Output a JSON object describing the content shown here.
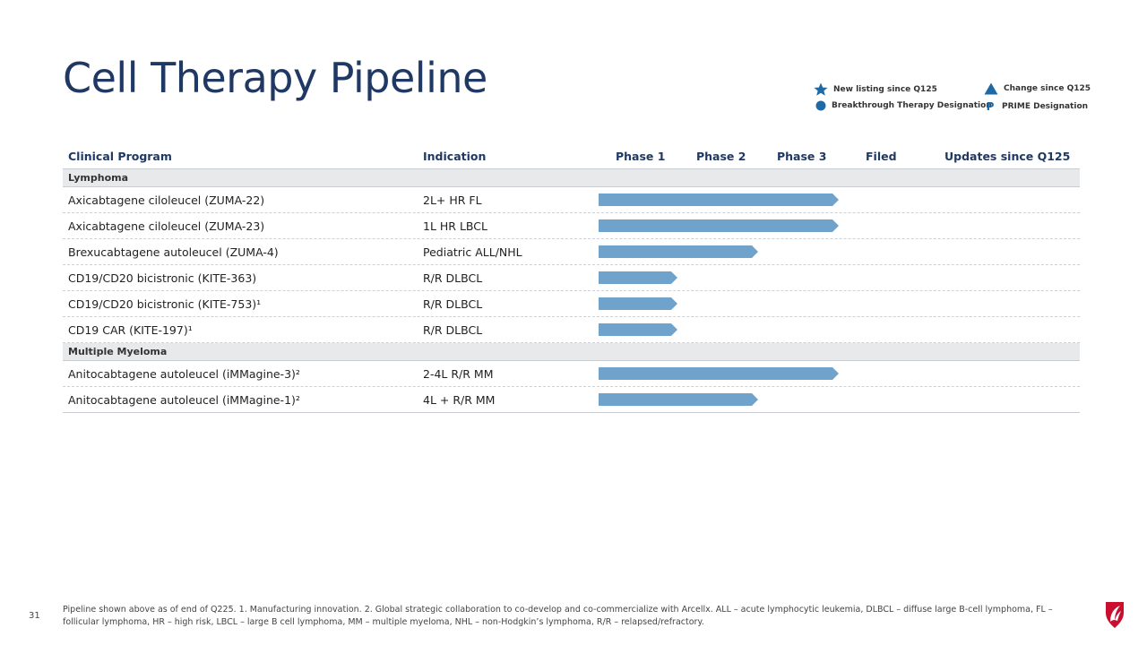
{
  "title": "Cell Therapy Pipeline",
  "legend": {
    "new_listing": "New listing since Q125",
    "change": "Change since Q125",
    "breakthrough": "Breakthrough Therapy Designation",
    "prime_glyph": "P",
    "prime": "PRIME Designation"
  },
  "headers": {
    "program": "Clinical Program",
    "indication": "Indication",
    "phase1": "Phase 1",
    "phase2": "Phase 2",
    "phase3": "Phase 3",
    "filed": "Filed",
    "updates": "Updates since Q125"
  },
  "groups": {
    "lymphoma": "Lymphoma",
    "myeloma": "Multiple Myeloma"
  },
  "rows": [
    {
      "program": "Axicabtagene ciloleucel (ZUMA-22)",
      "indication": "2L+ HR FL",
      "phase": 3
    },
    {
      "program": "Axicabtagene ciloleucel (ZUMA-23)",
      "indication": "1L HR LBCL",
      "phase": 3
    },
    {
      "program": "Brexucabtagene autoleucel (ZUMA-4)",
      "indication": "Pediatric ALL/NHL",
      "phase": 2
    },
    {
      "program": "CD19/CD20 bicistronic (KITE-363)",
      "indication": "R/R DLBCL",
      "phase": 1
    },
    {
      "program": "CD19/CD20 bicistronic (KITE-753)¹",
      "indication": "R/R DLBCL",
      "phase": 1
    },
    {
      "program": "CD19 CAR (KITE-197)¹",
      "indication": "R/R DLBCL",
      "phase": 1
    },
    {
      "program": "Anitocabtagene autoleucel (iMMagine-3)²",
      "indication": "2-4L R/R MM",
      "phase": 3
    },
    {
      "program": "Anitocabtagene autoleucel (iMMagine-1)²",
      "indication": "4L + R/R MM",
      "phase": 2
    }
  ],
  "colors": {
    "bar": "#6fa3cc",
    "accent": "#1f6aa5",
    "title": "#1f3864",
    "logo": "#c8102e"
  },
  "footer": "Pipeline shown above as of end of Q225. 1. Manufacturing innovation. 2. Global strategic collaboration to co-develop and co-commercialize with Arcellx. ALL – acute lymphocytic leukemia, DLBCL – diffuse large B-cell lymphoma, FL – follicular lymphoma, HR – high risk, LBCL – large B cell lymphoma, MM – multiple myeloma, NHL – non-Hodgkin’s lymphoma, R/R – relapsed/refractory.",
  "page_number": "31"
}
